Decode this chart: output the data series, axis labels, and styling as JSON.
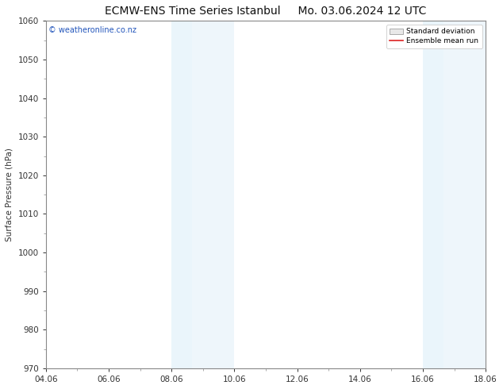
{
  "title": "ECMW-ENS Time Series Istanbul",
  "title2": "Mo. 03.06.2024 12 UTC",
  "ylabel": "Surface Pressure (hPa)",
  "ylim": [
    970,
    1060
  ],
  "yticks": [
    970,
    980,
    990,
    1000,
    1010,
    1020,
    1030,
    1040,
    1050,
    1060
  ],
  "x_min": 0,
  "x_max": 14,
  "xtick_labels": [
    "04.06",
    "06.06",
    "08.06",
    "10.06",
    "12.06",
    "14.06",
    "16.06",
    "18.06"
  ],
  "xtick_positions": [
    0,
    2,
    4,
    6,
    8,
    10,
    12,
    14
  ],
  "shaded_regions": [
    {
      "start": 4.0,
      "end": 4.67
    },
    {
      "start": 4.67,
      "end": 6.0
    },
    {
      "start": 12.0,
      "end": 12.67
    },
    {
      "start": 12.67,
      "end": 14.0
    }
  ],
  "shaded_colors": [
    "#d6eaf8",
    "#cde8f5",
    "#d6eaf8",
    "#cde8f5"
  ],
  "shaded_color": "#daedf8",
  "watermark": "© weatheronline.co.nz",
  "watermark_color": "#2255bb",
  "legend_std_label": "Standard deviation",
  "legend_mean_label": "Ensemble mean run",
  "legend_std_facecolor": "#e8e8e8",
  "legend_std_edgecolor": "#aaaaaa",
  "legend_mean_color": "#dd2222",
  "bg_color": "#ffffff",
  "spine_color": "#888888",
  "tick_color": "#333333",
  "title_fontsize": 10,
  "label_fontsize": 7.5,
  "watermark_fontsize": 7
}
